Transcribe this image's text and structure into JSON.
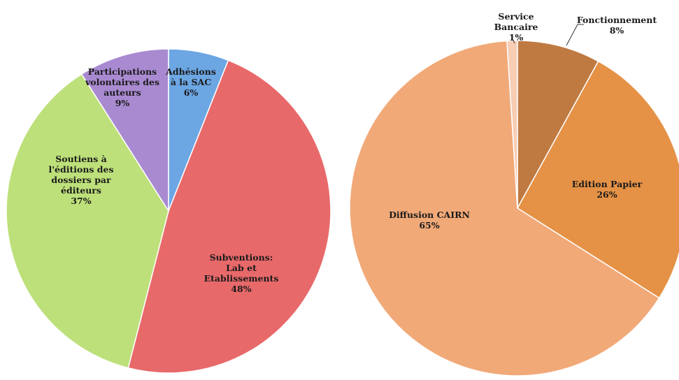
{
  "chart_data": [
    {
      "type": "pie",
      "title": "",
      "slices": [
        {
          "label_lines": [
            "Adhésions",
            "à la SAC",
            "6%"
          ],
          "value": 6,
          "color": "#6ca6e3"
        },
        {
          "label_lines": [
            "Subventions:",
            "Lab et",
            "Etablissements",
            "48%"
          ],
          "value": 48,
          "color": "#e8696a"
        },
        {
          "label_lines": [
            "Soutiens à",
            "l'éditions des",
            "dossiers par",
            "éditeurs",
            "37%"
          ],
          "value": 37,
          "color": "#bde07a"
        },
        {
          "label_lines": [
            "Participations",
            "volontaires des",
            "auteurs",
            "9%"
          ],
          "value": 9,
          "color": "#a98ad1"
        }
      ]
    },
    {
      "type": "pie",
      "title": "",
      "slices": [
        {
          "label_lines": [
            "Fonctionnement",
            "8%"
          ],
          "value": 8,
          "color": "#bf7a42"
        },
        {
          "label_lines": [
            "Edition Papier",
            "26%"
          ],
          "value": 26,
          "color": "#e59246"
        },
        {
          "label_lines": [
            "Diffusion CAIRN",
            "65%"
          ],
          "value": 65,
          "color": "#f1a978"
        },
        {
          "label_lines": [
            "Service",
            "Bancaire",
            "1%"
          ],
          "value": 1,
          "color": "#f7cdb4"
        }
      ]
    }
  ]
}
